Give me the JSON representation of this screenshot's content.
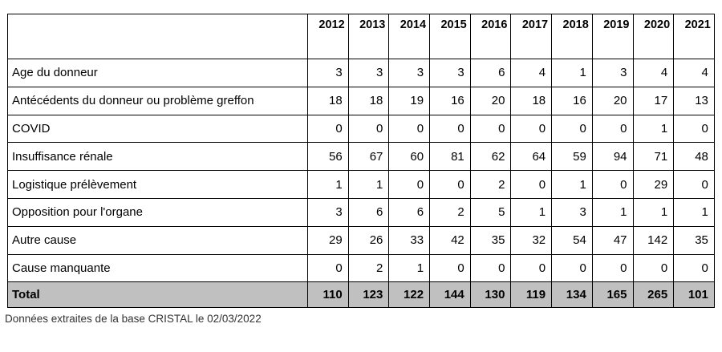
{
  "table": {
    "corner": "",
    "years": [
      "2012",
      "2013",
      "2014",
      "2015",
      "2016",
      "2017",
      "2018",
      "2019",
      "2020",
      "2021"
    ],
    "rows": [
      {
        "label": "Age du donneur",
        "values": [
          "3",
          "3",
          "3",
          "3",
          "6",
          "4",
          "1",
          "3",
          "4",
          "4"
        ]
      },
      {
        "label": "Antécédents du donneur ou problème greffon",
        "values": [
          "18",
          "18",
          "19",
          "16",
          "20",
          "18",
          "16",
          "20",
          "17",
          "13"
        ]
      },
      {
        "label": "COVID",
        "values": [
          "0",
          "0",
          "0",
          "0",
          "0",
          "0",
          "0",
          "0",
          "1",
          "0"
        ]
      },
      {
        "label": "Insuffisance rénale",
        "values": [
          "56",
          "67",
          "60",
          "81",
          "62",
          "64",
          "59",
          "94",
          "71",
          "48"
        ]
      },
      {
        "label": "Logistique prélèvement",
        "values": [
          "1",
          "1",
          "0",
          "0",
          "2",
          "0",
          "1",
          "0",
          "29",
          "0"
        ]
      },
      {
        "label": "Opposition pour l'organe",
        "values": [
          "3",
          "6",
          "6",
          "2",
          "5",
          "1",
          "3",
          "1",
          "1",
          "1"
        ]
      },
      {
        "label": "Autre cause",
        "values": [
          "29",
          "26",
          "33",
          "42",
          "35",
          "32",
          "54",
          "47",
          "142",
          "35"
        ]
      },
      {
        "label": "Cause manquante",
        "values": [
          "0",
          "2",
          "1",
          "0",
          "0",
          "0",
          "0",
          "0",
          "0",
          "0"
        ]
      }
    ],
    "total": {
      "label": "Total",
      "values": [
        "110",
        "123",
        "122",
        "144",
        "130",
        "119",
        "134",
        "165",
        "265",
        "101"
      ]
    }
  },
  "footnote": "Données extraites de la base CRISTAL le 02/03/2022",
  "colors": {
    "border": "#000000",
    "total_row_bg": "#c0c0c0"
  }
}
